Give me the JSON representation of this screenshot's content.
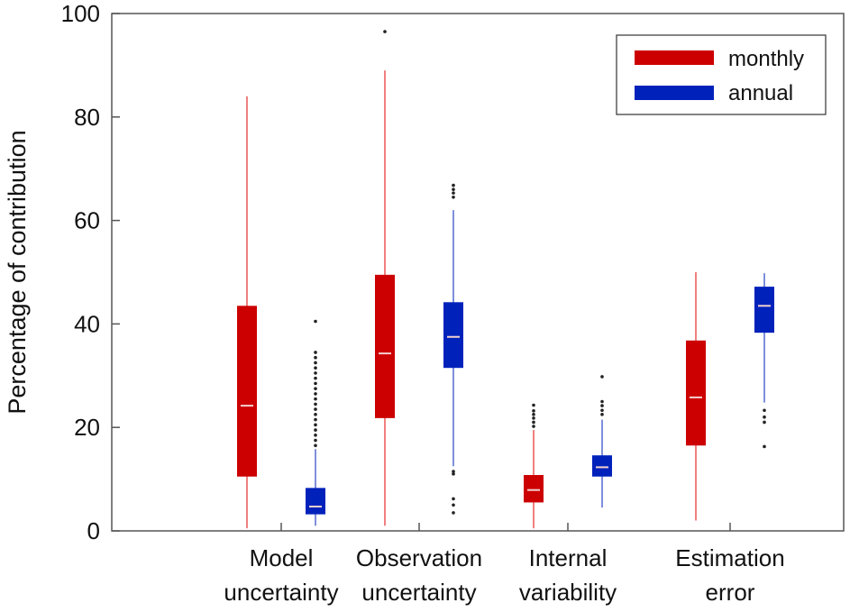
{
  "chart_data": {
    "type": "boxplot",
    "ylabel": "Percentage of contribution",
    "ylim": [
      0,
      100
    ],
    "yticks": [
      0,
      20,
      40,
      60,
      80,
      100
    ],
    "grid": false,
    "legend_position": "top-right",
    "categories": [
      {
        "lines": [
          "Model",
          "uncertainty"
        ]
      },
      {
        "lines": [
          "Observation",
          "uncertainty"
        ]
      },
      {
        "lines": [
          "Internal",
          "variability"
        ]
      },
      {
        "lines": [
          "Estimation",
          "error"
        ]
      }
    ],
    "series": [
      {
        "name": "monthly",
        "color": "#cc0000",
        "whisker_color": "#f08080",
        "boxes": [
          {
            "min": 0.5,
            "q1": 10.5,
            "median": 24.2,
            "q3": 43.5,
            "max": 84,
            "outliers": []
          },
          {
            "min": 1,
            "q1": 21.8,
            "median": 34.3,
            "q3": 49.5,
            "max": 89,
            "outliers": [
              96.5
            ]
          },
          {
            "min": 0.5,
            "q1": 5.5,
            "median": 7.9,
            "q3": 10.8,
            "max": 19.5,
            "outliers": [
              20.2,
              21,
              21.8,
              22.5,
              23.2,
              24.3
            ]
          },
          {
            "min": 2,
            "q1": 16.5,
            "median": 25.8,
            "q3": 36.8,
            "max": 50,
            "outliers": []
          }
        ]
      },
      {
        "name": "annual",
        "color": "#0022bb",
        "whisker_color": "#7f8fdc",
        "boxes": [
          {
            "min": 1,
            "q1": 3.2,
            "median": 4.7,
            "q3": 8.3,
            "max": 15.8,
            "outliers": [
              16.5,
              17.5,
              18.5,
              19.5,
              20.5,
              21.5,
              22.5,
              23.5,
              24.5,
              25.5,
              26.5,
              27.5,
              28.5,
              29.5,
              30.5,
              31.5,
              32.5,
              33.5,
              34.5,
              40.5
            ]
          },
          {
            "min": 12.5,
            "q1": 31.5,
            "median": 37.5,
            "q3": 44.2,
            "max": 62,
            "outliers": [
              3.5,
              5,
              6.2,
              11,
              11.5,
              64.5,
              65.3,
              66,
              66.8
            ]
          },
          {
            "min": 4.5,
            "q1": 10.5,
            "median": 12.3,
            "q3": 14.6,
            "max": 21.5,
            "outliers": [
              22.5,
              23.3,
              24.2,
              25,
              29.8
            ]
          },
          {
            "min": 24.8,
            "q1": 38.3,
            "median": 43.5,
            "q3": 47.2,
            "max": 49.8,
            "outliers": [
              16.3,
              21,
              22,
              23.3
            ]
          }
        ]
      }
    ]
  }
}
